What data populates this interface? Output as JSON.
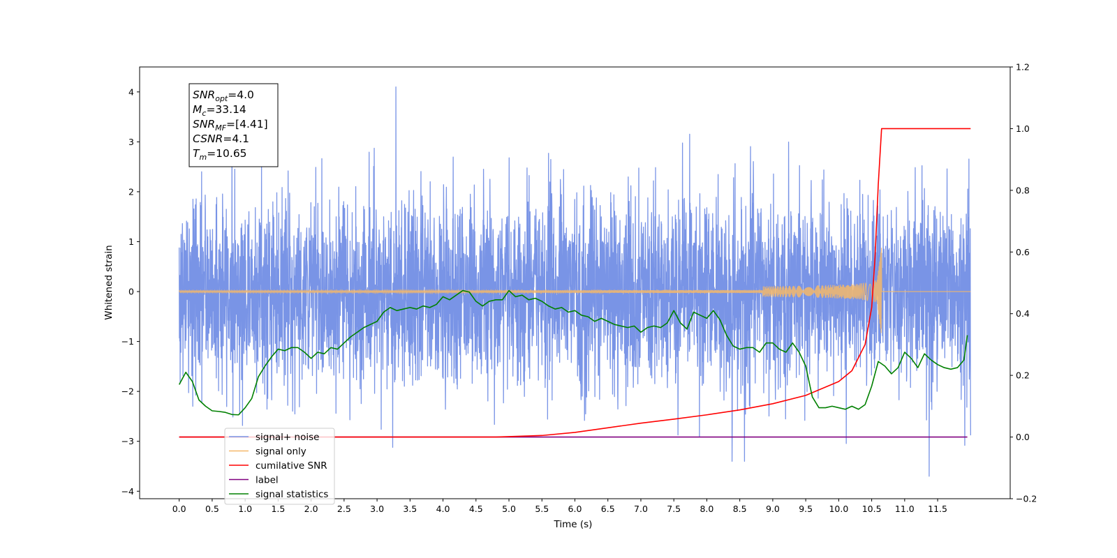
{
  "chart_data": {
    "type": "line",
    "title": "",
    "xlabel": "Time (s)",
    "ylabel": "Whitened strain",
    "y2label": "",
    "xlim": [
      -0.6,
      12.6
    ],
    "ylim": [
      -4.15,
      4.5
    ],
    "y2lim": [
      -0.2,
      1.2
    ],
    "x_ticks": [
      "0.0",
      "0.5",
      "1.0",
      "1.5",
      "2.0",
      "2.5",
      "3.0",
      "3.5",
      "4.0",
      "4.5",
      "5.0",
      "5.5",
      "6.0",
      "6.5",
      "7.0",
      "7.5",
      "8.0",
      "8.5",
      "9.0",
      "9.5",
      "10.0",
      "10.5",
      "11.0",
      "11.5"
    ],
    "y_ticks": [
      "−4",
      "−3",
      "−2",
      "−1",
      "0",
      "1",
      "2",
      "3",
      "4"
    ],
    "y2_ticks": [
      "−0.2",
      "0.0",
      "0.2",
      "0.4",
      "0.6",
      "0.8",
      "1.0",
      "1.2"
    ],
    "grid": false,
    "legend_position": "lower-left",
    "annotation": [
      {
        "base": "SNR",
        "sub": "opt",
        "value": "=4.0"
      },
      {
        "base": "M",
        "sub": "c",
        "value": "=33.14"
      },
      {
        "base": "SNR",
        "sub": "MF",
        "value": "=[4.41]"
      },
      {
        "base": "CSNR",
        "sub": "",
        "value": "=4.1"
      },
      {
        "base": "T",
        "sub": "m",
        "value": "=10.65"
      }
    ],
    "series": [
      {
        "name": "signal+ noise",
        "axis": "left",
        "color": "#7994e6",
        "x_range": [
          0.0,
          12.0
        ],
        "noise_std": 0.95,
        "y_extremes": [
          4.1,
          -3.7
        ]
      },
      {
        "name": "signal only",
        "axis": "left",
        "color": "#f5b86a",
        "x_range": [
          0.0,
          12.0
        ],
        "chirp_peak_time": 10.65,
        "chirp_peak_amplitude": 0.9
      },
      {
        "name": "cumilative SNR",
        "axis": "right",
        "color": "#ff0000",
        "x": [
          0.0,
          4.8,
          5.5,
          6.0,
          6.5,
          7.0,
          7.5,
          8.0,
          8.5,
          9.0,
          9.5,
          10.0,
          10.2,
          10.4,
          10.5,
          10.55,
          10.6,
          10.65,
          12.0
        ],
        "values": [
          0.0,
          0.0,
          0.005,
          0.015,
          0.03,
          0.045,
          0.058,
          0.072,
          0.088,
          0.108,
          0.135,
          0.18,
          0.215,
          0.3,
          0.42,
          0.58,
          0.82,
          1.0,
          1.0
        ]
      },
      {
        "name": "label",
        "axis": "right",
        "color": "#800080",
        "x": [
          0.0,
          11.95
        ],
        "values": [
          0.0,
          0.0
        ]
      },
      {
        "name": "signal statistics",
        "axis": "right",
        "color": "#008000",
        "x": [
          0.0,
          0.1,
          0.2,
          0.3,
          0.4,
          0.5,
          0.6,
          0.7,
          0.8,
          0.9,
          1.0,
          1.1,
          1.2,
          1.3,
          1.4,
          1.5,
          1.6,
          1.7,
          1.8,
          1.9,
          2.0,
          2.1,
          2.2,
          2.3,
          2.4,
          2.5,
          2.6,
          2.7,
          2.8,
          2.9,
          3.0,
          3.1,
          3.2,
          3.3,
          3.4,
          3.5,
          3.6,
          3.7,
          3.8,
          3.9,
          4.0,
          4.1,
          4.2,
          4.3,
          4.4,
          4.5,
          4.6,
          4.7,
          4.8,
          4.9,
          5.0,
          5.1,
          5.2,
          5.3,
          5.4,
          5.5,
          5.6,
          5.7,
          5.8,
          5.9,
          6.0,
          6.1,
          6.2,
          6.3,
          6.4,
          6.5,
          6.6,
          6.7,
          6.8,
          6.9,
          7.0,
          7.1,
          7.2,
          7.3,
          7.4,
          7.5,
          7.6,
          7.7,
          7.8,
          7.9,
          8.0,
          8.1,
          8.2,
          8.3,
          8.4,
          8.5,
          8.6,
          8.7,
          8.8,
          8.9,
          9.0,
          9.1,
          9.2,
          9.3,
          9.4,
          9.5,
          9.6,
          9.7,
          9.8,
          9.9,
          10.0,
          10.1,
          10.2,
          10.3,
          10.4,
          10.5,
          10.6,
          10.7,
          10.8,
          10.9,
          11.0,
          11.1,
          11.2,
          11.3,
          11.4,
          11.5,
          11.6,
          11.7,
          11.8,
          11.9,
          11.95
        ],
        "values": [
          0.17,
          0.21,
          0.18,
          0.12,
          0.1,
          0.085,
          0.083,
          0.08,
          0.073,
          0.072,
          0.095,
          0.125,
          0.195,
          0.23,
          0.26,
          0.285,
          0.28,
          0.29,
          0.29,
          0.275,
          0.255,
          0.275,
          0.27,
          0.29,
          0.285,
          0.305,
          0.325,
          0.34,
          0.355,
          0.365,
          0.375,
          0.405,
          0.42,
          0.41,
          0.415,
          0.42,
          0.415,
          0.425,
          0.42,
          0.43,
          0.455,
          0.445,
          0.46,
          0.475,
          0.47,
          0.44,
          0.425,
          0.44,
          0.445,
          0.445,
          0.475,
          0.455,
          0.46,
          0.445,
          0.45,
          0.44,
          0.425,
          0.415,
          0.42,
          0.405,
          0.41,
          0.395,
          0.39,
          0.375,
          0.385,
          0.375,
          0.365,
          0.36,
          0.355,
          0.36,
          0.34,
          0.355,
          0.36,
          0.355,
          0.37,
          0.41,
          0.37,
          0.35,
          0.405,
          0.395,
          0.385,
          0.41,
          0.38,
          0.33,
          0.295,
          0.285,
          0.29,
          0.29,
          0.275,
          0.305,
          0.305,
          0.285,
          0.275,
          0.305,
          0.275,
          0.23,
          0.13,
          0.095,
          0.095,
          0.1,
          0.095,
          0.09,
          0.1,
          0.09,
          0.105,
          0.165,
          0.245,
          0.23,
          0.205,
          0.225,
          0.275,
          0.255,
          0.225,
          0.27,
          0.25,
          0.235,
          0.225,
          0.22,
          0.225,
          0.25,
          0.33
        ]
      }
    ]
  }
}
